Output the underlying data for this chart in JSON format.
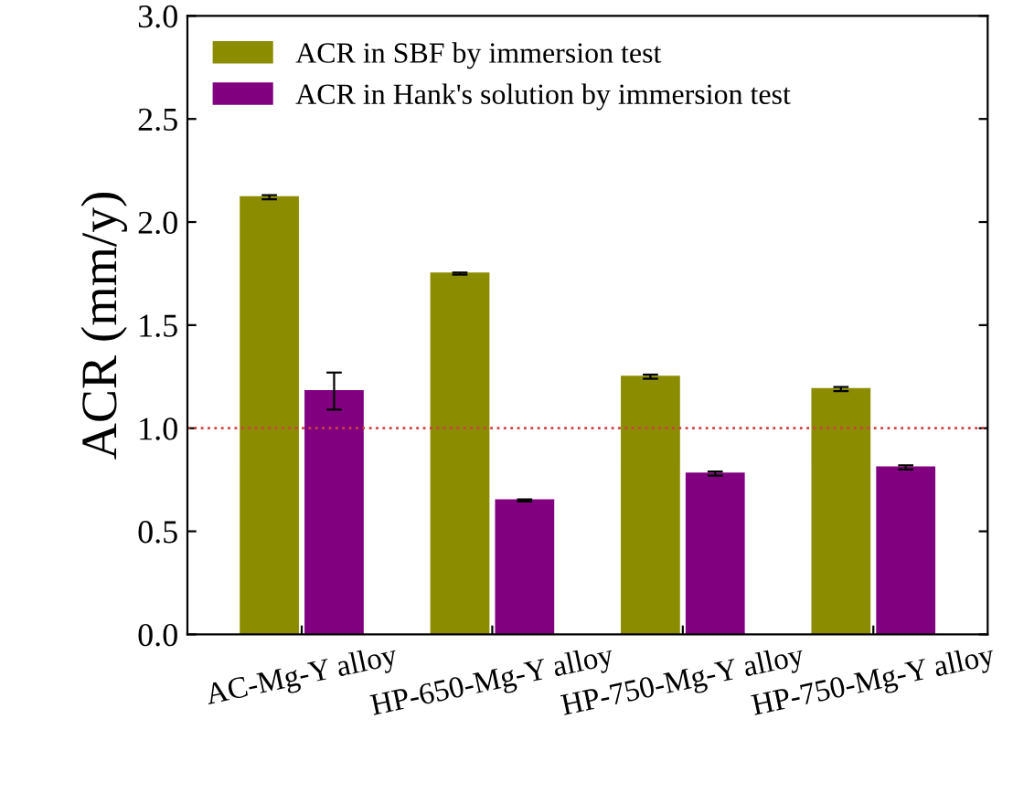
{
  "chart_data": {
    "type": "bar",
    "ylabel": "ACR (mm/y)",
    "categories": [
      "AC-Mg-Y alloy",
      "HP-650-Mg-Y alloy",
      "HP-750-Mg-Y alloy",
      "HP-750-Mg-Y alloy"
    ],
    "series": [
      {
        "name": "ACR in SBF by immersion test",
        "color": "#8c8c00",
        "values": [
          2.12,
          1.75,
          1.25,
          1.19
        ],
        "errors": [
          0.01,
          0.005,
          0.01,
          0.01
        ]
      },
      {
        "name": "ACR in Hank's solution by immersion test",
        "color": "#800080",
        "values": [
          1.18,
          0.65,
          0.78,
          0.81
        ],
        "errors": [
          0.09,
          0.005,
          0.01,
          0.01
        ]
      }
    ],
    "ylim": [
      0,
      3.0
    ],
    "yticks": [
      {
        "value": 0,
        "label": "0.0"
      },
      {
        "value": 0.5,
        "label": "0.5"
      },
      {
        "value": 1.0,
        "label": "1.0"
      },
      {
        "value": 1.5,
        "label": "1.5"
      },
      {
        "value": 2.0,
        "label": "2.0"
      },
      {
        "value": 2.5,
        "label": "2.5"
      },
      {
        "value": 3.0,
        "label": "3.0"
      }
    ],
    "ref_lines": [
      {
        "axis": "y",
        "value": 1.0,
        "color": "#d04040",
        "line_style": "dotted"
      }
    ],
    "legend": "top left",
    "grid": false
  }
}
